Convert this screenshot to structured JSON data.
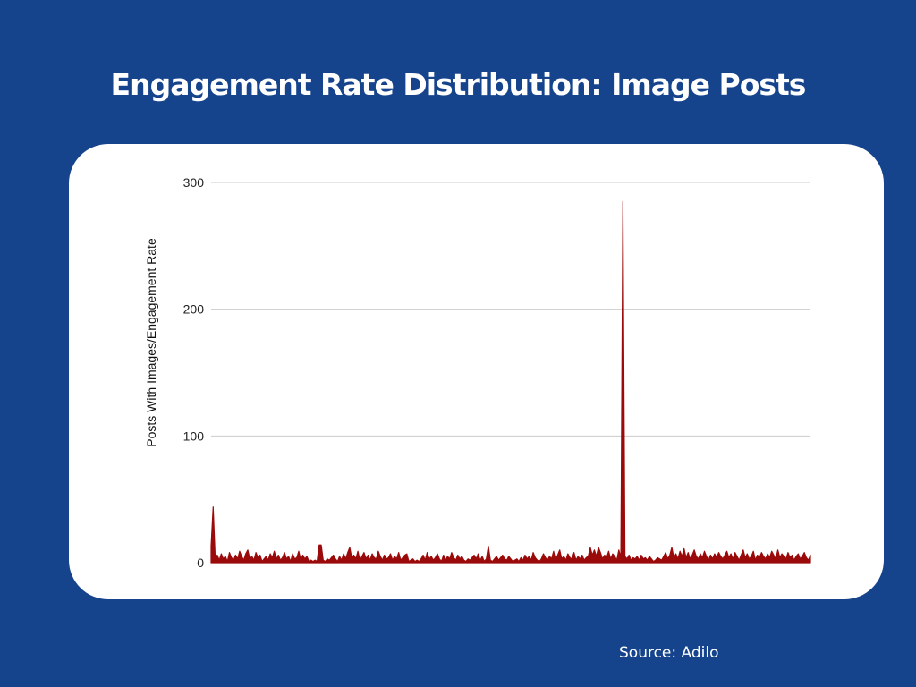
{
  "header": {
    "title": "Engagement Rate Distribution: Image Posts"
  },
  "footer": {
    "source": "Source: Adilo"
  },
  "colors": {
    "background": "#16448C",
    "card": "#FFFFFF",
    "series": "#9B0A0A",
    "grid": "#CCCCCC"
  },
  "chart_data": {
    "type": "area",
    "title": "Engagement Rate Distribution: Image Posts",
    "ylabel": "Posts With Images/Engagement Rate",
    "xlabel": "",
    "ylim": [
      0,
      300
    ],
    "yticks": [
      "0",
      "100",
      "200",
      "300"
    ],
    "grid": true,
    "legend": "none",
    "series": [
      {
        "values": [
          13,
          44,
          4,
          6,
          2,
          7,
          3,
          5,
          1,
          8,
          4,
          2,
          6,
          3,
          9,
          5,
          2,
          7,
          10,
          3,
          5,
          2,
          8,
          4,
          6,
          1,
          3,
          5,
          2,
          7,
          4,
          9,
          3,
          6,
          2,
          4,
          8,
          3,
          5,
          1,
          7,
          3,
          4,
          9,
          2,
          6,
          3,
          5,
          1,
          2,
          1,
          2,
          1,
          14,
          14,
          2,
          1,
          3,
          2,
          4,
          6,
          3,
          1,
          5,
          2,
          7,
          3,
          8,
          12,
          4,
          6,
          3,
          9,
          2,
          5,
          8,
          3,
          6,
          2,
          7,
          4,
          3,
          9,
          5,
          2,
          6,
          3,
          4,
          7,
          2,
          5,
          3,
          8,
          2,
          4,
          6,
          7,
          1,
          2,
          3,
          1,
          2,
          1,
          3,
          6,
          2,
          8,
          3,
          5,
          2,
          4,
          7,
          3,
          1,
          6,
          2,
          5,
          3,
          8,
          4,
          2,
          6,
          3,
          5,
          2,
          1,
          3,
          2,
          4,
          6,
          3,
          7,
          2,
          5,
          1,
          3,
          13,
          2,
          1,
          3,
          5,
          2,
          4,
          6,
          3,
          2,
          5,
          3,
          1,
          2,
          3,
          1,
          4,
          2,
          6,
          3,
          5,
          2,
          8,
          4,
          2,
          1,
          3,
          7,
          4,
          2,
          5,
          3,
          9,
          2,
          6,
          10,
          3,
          5,
          2,
          7,
          4,
          3,
          8,
          2,
          5,
          3,
          6,
          2,
          4,
          5,
          12,
          6,
          10,
          5,
          12,
          8,
          3,
          6,
          4,
          9,
          3,
          7,
          5,
          2,
          10,
          4,
          285,
          5,
          3,
          6,
          2,
          4,
          3,
          5,
          2,
          6,
          3,
          4,
          2,
          5,
          3,
          1,
          2,
          4,
          3,
          2,
          5,
          8,
          3,
          6,
          12,
          4,
          7,
          3,
          9,
          5,
          11,
          4,
          8,
          3,
          6,
          10,
          5,
          3,
          7,
          4,
          9,
          5,
          2,
          6,
          3,
          7,
          4,
          8,
          5,
          3,
          6,
          9,
          4,
          7,
          3,
          8,
          5,
          2,
          6,
          10,
          4,
          7,
          3,
          5,
          9,
          2,
          6,
          4,
          8,
          5,
          3,
          7,
          4,
          9,
          6,
          3,
          10,
          4,
          7,
          5,
          3,
          8,
          4,
          6,
          2,
          5,
          7,
          3,
          5,
          8,
          4,
          2,
          6
        ]
      }
    ]
  }
}
